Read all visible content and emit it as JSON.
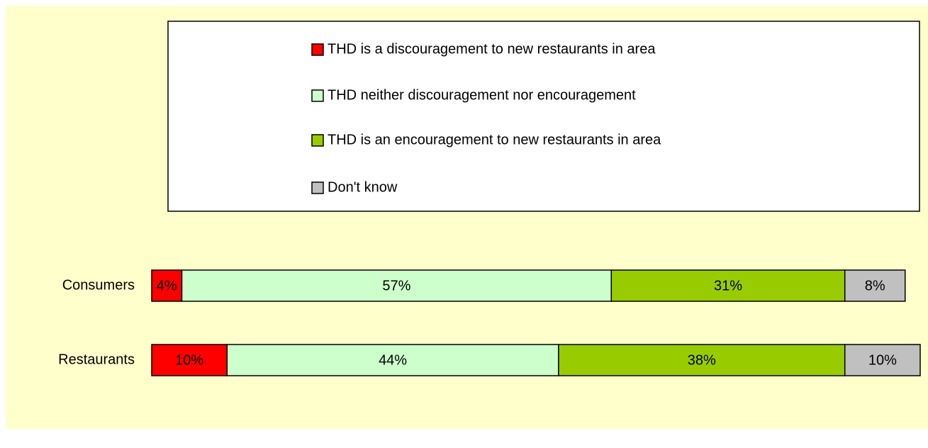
{
  "chart_data": {
    "type": "stacked-bar-horizontal",
    "categories": [
      "Consumers",
      "Restaurants"
    ],
    "series": [
      {
        "name": "THD is a discouragement to new restaurants in area",
        "color": "#ff0000",
        "values": [
          4,
          10
        ],
        "value_labels": [
          "4%",
          "10%"
        ]
      },
      {
        "name": "THD neither discouragement nor encouragement",
        "color": "#ccffcc",
        "values": [
          57,
          44
        ],
        "value_labels": [
          "57%",
          "44%"
        ]
      },
      {
        "name": "THD is an encouragement to new restaurants in area",
        "color": "#99cc00",
        "values": [
          31,
          38
        ],
        "value_labels": [
          "31%",
          "38%"
        ]
      },
      {
        "name": "Don't know",
        "color": "#c0c0c0",
        "values": [
          8,
          10
        ],
        "value_labels": [
          "8%",
          "10%"
        ]
      }
    ],
    "legend": "top"
  }
}
